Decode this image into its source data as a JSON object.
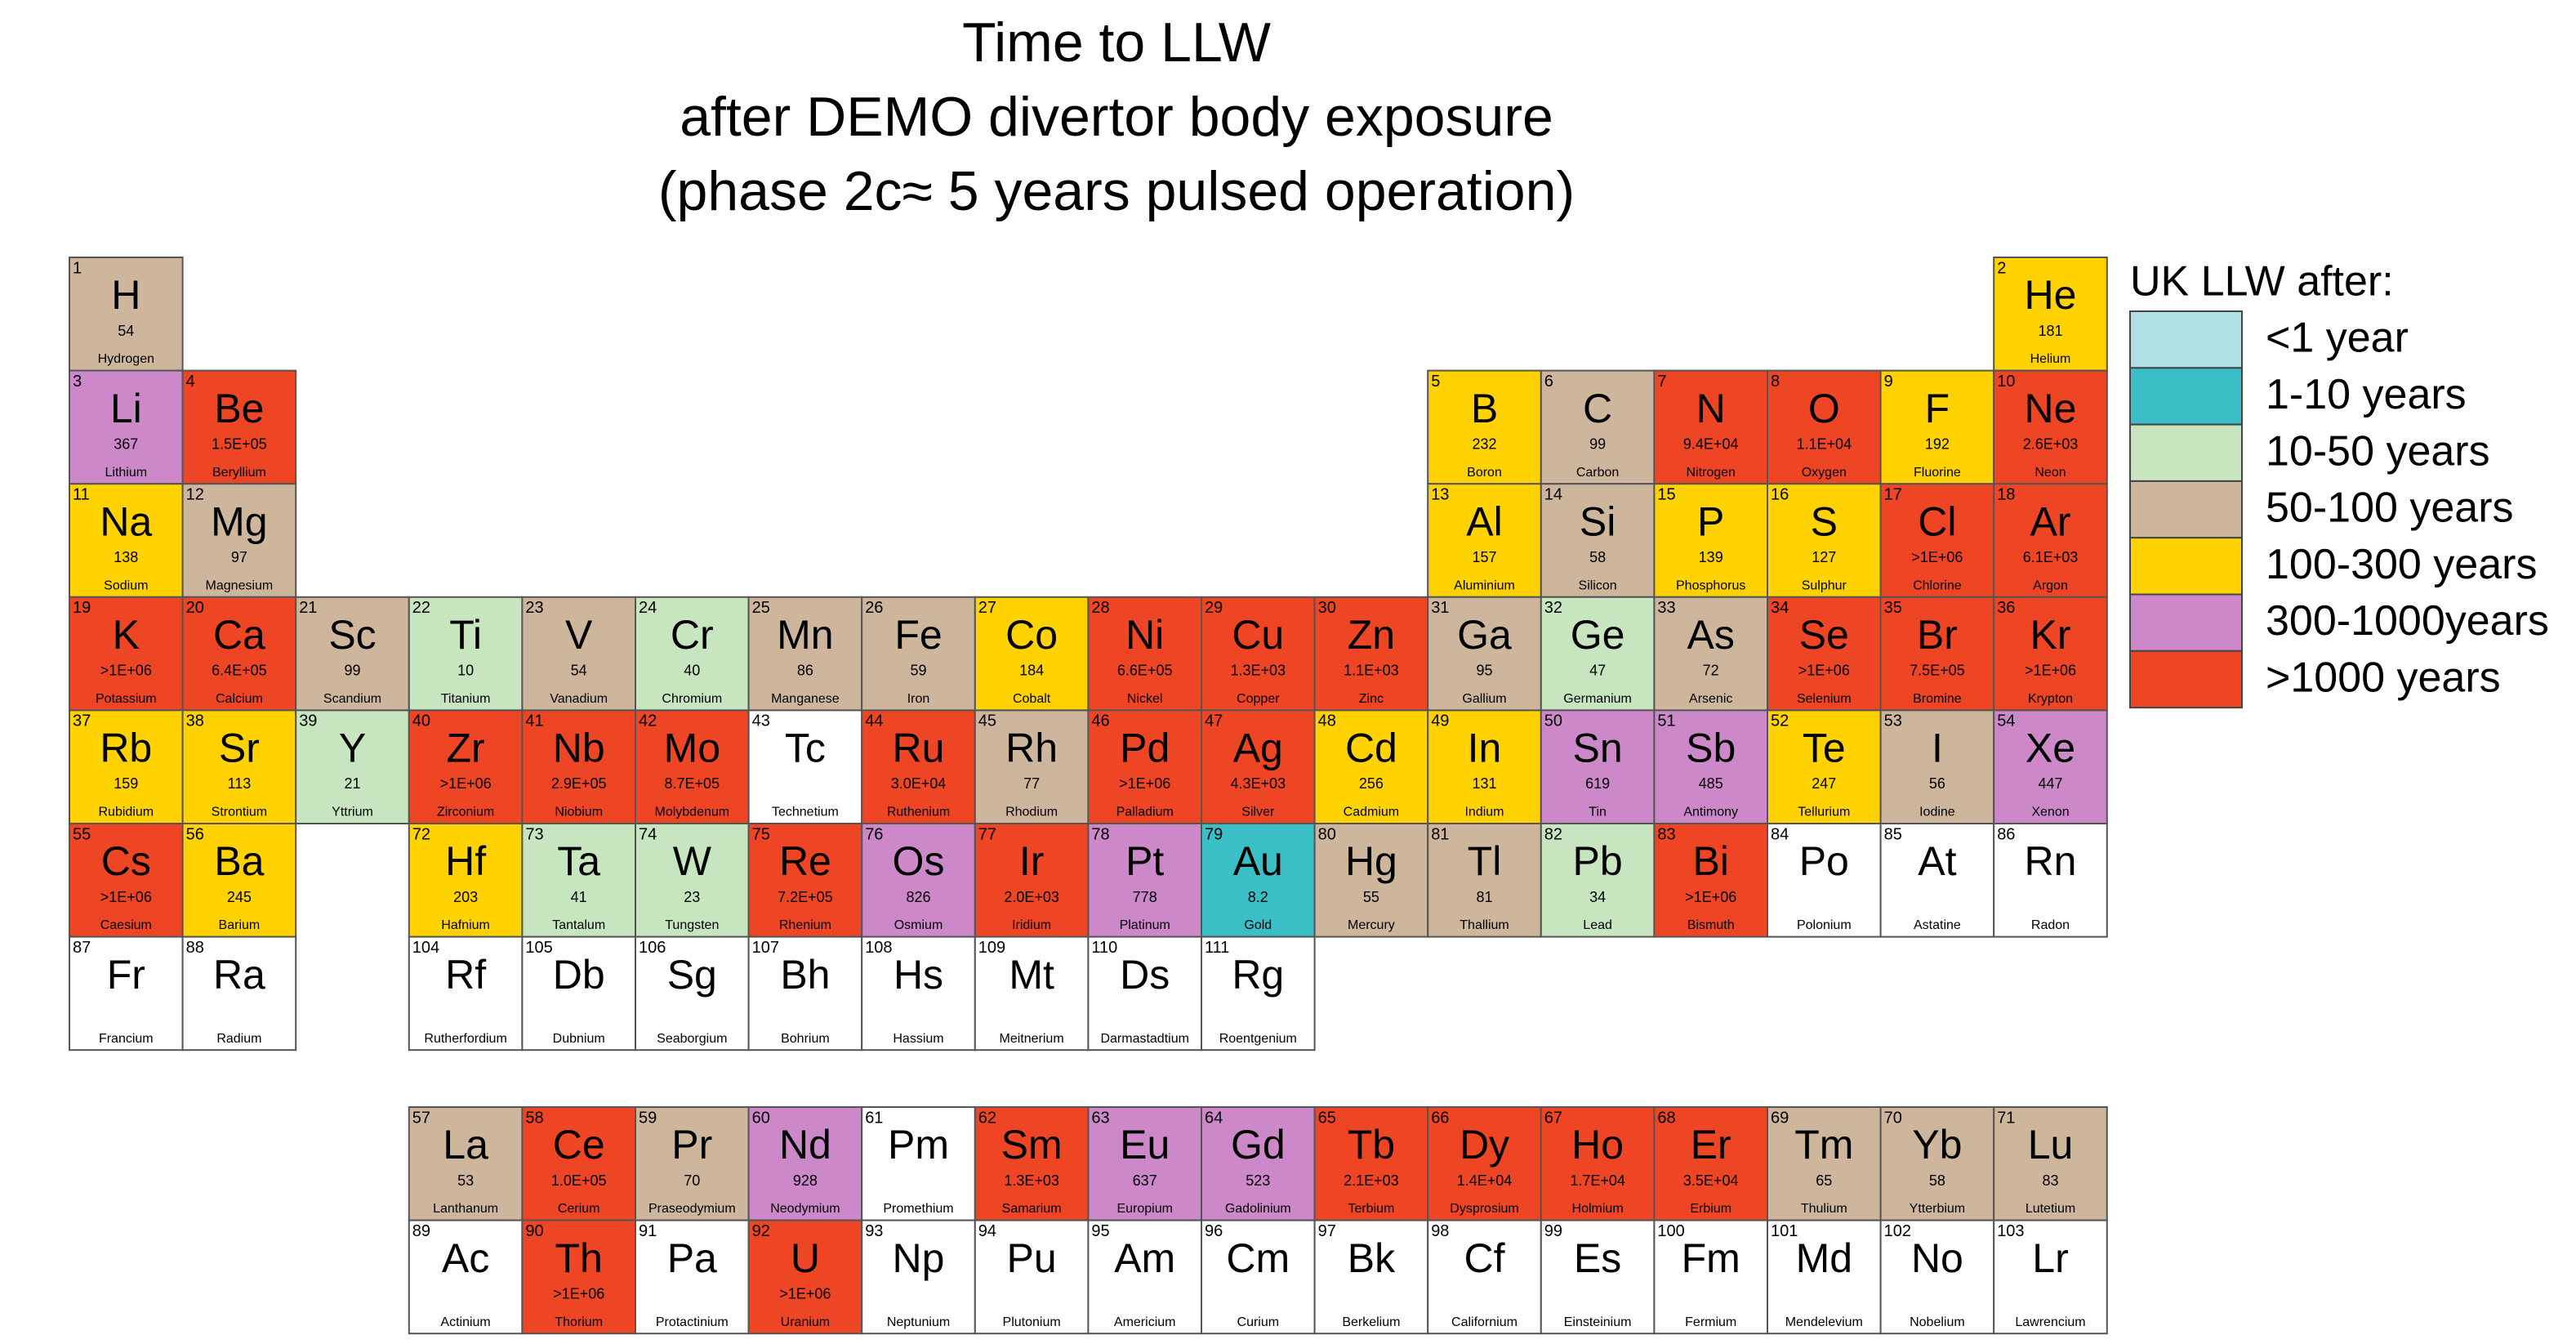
{
  "header": {
    "title": [
      "Time to LLW",
      "after DEMO divertor body exposure",
      "(phase 2c≈ 5 years pulsed operation)"
    ]
  },
  "legend": {
    "title": "UK LLW after:",
    "items": [
      {
        "label": "<1 year",
        "color": "#b0e0e6"
      },
      {
        "label": "1-10 years",
        "color": "#3bbfc6"
      },
      {
        "label": "10-50 years",
        "color": "#c7e5bf"
      },
      {
        "label": "50-100 years",
        "color": "#cdb69c"
      },
      {
        "label": "100-300 years",
        "color": "#ffd200"
      },
      {
        "label": "300-1000years",
        "color": "#cc88c9"
      },
      {
        "label": ">1000 years",
        "color": "#ee4524"
      }
    ]
  },
  "elements": [
    {
      "number": 1,
      "symbol": "H",
      "value": "54",
      "name": "Hydrogen",
      "color": "#cdb69c"
    },
    {
      "number": 2,
      "symbol": "He",
      "value": "181",
      "name": "Helium",
      "color": "#ffd200"
    },
    {
      "number": 3,
      "symbol": "Li",
      "value": "367",
      "name": "Lithium",
      "color": "#cc88c9"
    },
    {
      "number": 4,
      "symbol": "Be",
      "value": "1.5E+05",
      "name": "Beryllium",
      "color": "#ee4524"
    },
    {
      "number": 5,
      "symbol": "B",
      "value": "232",
      "name": "Boron",
      "color": "#ffd200"
    },
    {
      "number": 6,
      "symbol": "C",
      "value": "99",
      "name": "Carbon",
      "color": "#cdb69c"
    },
    {
      "number": 7,
      "symbol": "N",
      "value": "9.4E+04",
      "name": "Nitrogen",
      "color": "#ee4524"
    },
    {
      "number": 8,
      "symbol": "O",
      "value": "1.1E+04",
      "name": "Oxygen",
      "color": "#ee4524"
    },
    {
      "number": 9,
      "symbol": "F",
      "value": "192",
      "name": "Fluorine",
      "color": "#ffd200"
    },
    {
      "number": 10,
      "symbol": "Ne",
      "value": "2.6E+03",
      "name": "Neon",
      "color": "#ee4524"
    },
    {
      "number": 11,
      "symbol": "Na",
      "value": "138",
      "name": "Sodium",
      "color": "#ffd200"
    },
    {
      "number": 12,
      "symbol": "Mg",
      "value": "97",
      "name": "Magnesium",
      "color": "#cdb69c"
    },
    {
      "number": 13,
      "symbol": "Al",
      "value": "157",
      "name": "Aluminium",
      "color": "#ffd200"
    },
    {
      "number": 14,
      "symbol": "Si",
      "value": "58",
      "name": "Silicon",
      "color": "#cdb69c"
    },
    {
      "number": 15,
      "symbol": "P",
      "value": "139",
      "name": "Phosphorus",
      "color": "#ffd200"
    },
    {
      "number": 16,
      "symbol": "S",
      "value": "127",
      "name": "Sulphur",
      "color": "#ffd200"
    },
    {
      "number": 17,
      "symbol": "Cl",
      "value": ">1E+06",
      "name": "Chlorine",
      "color": "#ee4524"
    },
    {
      "number": 18,
      "symbol": "Ar",
      "value": "6.1E+03",
      "name": "Argon",
      "color": "#ee4524"
    },
    {
      "number": 19,
      "symbol": "K",
      "value": ">1E+06",
      "name": "Potassium",
      "color": "#ee4524"
    },
    {
      "number": 20,
      "symbol": "Ca",
      "value": "6.4E+05",
      "name": "Calcium",
      "color": "#ee4524"
    },
    {
      "number": 21,
      "symbol": "Sc",
      "value": "99",
      "name": "Scandium",
      "color": "#cdb69c"
    },
    {
      "number": 22,
      "symbol": "Ti",
      "value": "10",
      "name": "Titanium",
      "color": "#c7e5bf"
    },
    {
      "number": 23,
      "symbol": "V",
      "value": "54",
      "name": "Vanadium",
      "color": "#cdb69c"
    },
    {
      "number": 24,
      "symbol": "Cr",
      "value": "40",
      "name": "Chromium",
      "color": "#c7e5bf"
    },
    {
      "number": 25,
      "symbol": "Mn",
      "value": "86",
      "name": "Manganese",
      "color": "#cdb69c"
    },
    {
      "number": 26,
      "symbol": "Fe",
      "value": "59",
      "name": "Iron",
      "color": "#cdb69c"
    },
    {
      "number": 27,
      "symbol": "Co",
      "value": "184",
      "name": "Cobalt",
      "color": "#ffd200"
    },
    {
      "number": 28,
      "symbol": "Ni",
      "value": "6.6E+05",
      "name": "Nickel",
      "color": "#ee4524"
    },
    {
      "number": 29,
      "symbol": "Cu",
      "value": "1.3E+03",
      "name": "Copper",
      "color": "#ee4524"
    },
    {
      "number": 30,
      "symbol": "Zn",
      "value": "1.1E+03",
      "name": "Zinc",
      "color": "#ee4524"
    },
    {
      "number": 31,
      "symbol": "Ga",
      "value": "95",
      "name": "Gallium",
      "color": "#cdb69c"
    },
    {
      "number": 32,
      "symbol": "Ge",
      "value": "47",
      "name": "Germanium",
      "color": "#c7e5bf"
    },
    {
      "number": 33,
      "symbol": "As",
      "value": "72",
      "name": "Arsenic",
      "color": "#cdb69c"
    },
    {
      "number": 34,
      "symbol": "Se",
      "value": ">1E+06",
      "name": "Selenium",
      "color": "#ee4524"
    },
    {
      "number": 35,
      "symbol": "Br",
      "value": "7.5E+05",
      "name": "Bromine",
      "color": "#ee4524"
    },
    {
      "number": 36,
      "symbol": "Kr",
      "value": ">1E+06",
      "name": "Krypton",
      "color": "#ee4524"
    },
    {
      "number": 37,
      "symbol": "Rb",
      "value": "159",
      "name": "Rubidium",
      "color": "#ffd200"
    },
    {
      "number": 38,
      "symbol": "Sr",
      "value": "113",
      "name": "Strontium",
      "color": "#ffd200"
    },
    {
      "number": 39,
      "symbol": "Y",
      "value": "21",
      "name": "Yttrium",
      "color": "#c7e5bf"
    },
    {
      "number": 40,
      "symbol": "Zr",
      "value": ">1E+06",
      "name": "Zirconium",
      "color": "#ee4524"
    },
    {
      "number": 41,
      "symbol": "Nb",
      "value": "2.9E+05",
      "name": "Niobium",
      "color": "#ee4524"
    },
    {
      "number": 42,
      "symbol": "Mo",
      "value": "8.7E+05",
      "name": "Molybdenum",
      "color": "#ee4524"
    },
    {
      "number": 43,
      "symbol": "Tc",
      "name": "Technetium"
    },
    {
      "number": 44,
      "symbol": "Ru",
      "value": "3.0E+04",
      "name": "Ruthenium",
      "color": "#ee4524"
    },
    {
      "number": 45,
      "symbol": "Rh",
      "value": "77",
      "name": "Rhodium",
      "color": "#cdb69c"
    },
    {
      "number": 46,
      "symbol": "Pd",
      "value": ">1E+06",
      "name": "Palladium",
      "color": "#ee4524"
    },
    {
      "number": 47,
      "symbol": "Ag",
      "value": "4.3E+03",
      "name": "Silver",
      "color": "#ee4524"
    },
    {
      "number": 48,
      "symbol": "Cd",
      "value": "256",
      "name": "Cadmium",
      "color": "#ffd200"
    },
    {
      "number": 49,
      "symbol": "In",
      "value": "131",
      "name": "Indium",
      "color": "#ffd200"
    },
    {
      "number": 50,
      "symbol": "Sn",
      "value": "619",
      "name": "Tin",
      "color": "#cc88c9"
    },
    {
      "number": 51,
      "symbol": "Sb",
      "value": "485",
      "name": "Antimony",
      "color": "#cc88c9"
    },
    {
      "number": 52,
      "symbol": "Te",
      "value": "247",
      "name": "Tellurium",
      "color": "#ffd200"
    },
    {
      "number": 53,
      "symbol": "I",
      "value": "56",
      "name": "Iodine",
      "color": "#cdb69c"
    },
    {
      "number": 54,
      "symbol": "Xe",
      "value": "447",
      "name": "Xenon",
      "color": "#cc88c9"
    },
    {
      "number": 55,
      "symbol": "Cs",
      "value": ">1E+06",
      "name": "Caesium",
      "color": "#ee4524"
    },
    {
      "number": 56,
      "symbol": "Ba",
      "value": "245",
      "name": "Barium",
      "color": "#ffd200"
    },
    {
      "number": 57,
      "symbol": "La",
      "value": "53",
      "name": "Lanthanum",
      "color": "#cdb69c"
    },
    {
      "number": 58,
      "symbol": "Ce",
      "value": "1.0E+05",
      "name": "Cerium",
      "color": "#ee4524"
    },
    {
      "number": 59,
      "symbol": "Pr",
      "value": "70",
      "name": "Praseodymium",
      "color": "#cdb69c"
    },
    {
      "number": 60,
      "symbol": "Nd",
      "value": "928",
      "name": "Neodymium",
      "color": "#cc88c9"
    },
    {
      "number": 61,
      "symbol": "Pm",
      "name": "Promethium"
    },
    {
      "number": 62,
      "symbol": "Sm",
      "value": "1.3E+03",
      "name": "Samarium",
      "color": "#ee4524"
    },
    {
      "number": 63,
      "symbol": "Eu",
      "value": "637",
      "name": "Europium",
      "color": "#cc88c9"
    },
    {
      "number": 64,
      "symbol": "Gd",
      "value": "523",
      "name": "Gadolinium",
      "color": "#cc88c9"
    },
    {
      "number": 65,
      "symbol": "Tb",
      "value": "2.1E+03",
      "name": "Terbium",
      "color": "#ee4524"
    },
    {
      "number": 66,
      "symbol": "Dy",
      "value": "1.4E+04",
      "name": "Dysprosium",
      "color": "#ee4524"
    },
    {
      "number": 67,
      "symbol": "Ho",
      "value": "1.7E+04",
      "name": "Holmium",
      "color": "#ee4524"
    },
    {
      "number": 68,
      "symbol": "Er",
      "value": "3.5E+04",
      "name": "Erbium",
      "color": "#ee4524"
    },
    {
      "number": 69,
      "symbol": "Tm",
      "value": "65",
      "name": "Thulium",
      "color": "#cdb69c"
    },
    {
      "number": 70,
      "symbol": "Yb",
      "value": "58",
      "name": "Ytterbium",
      "color": "#cdb69c"
    },
    {
      "number": 71,
      "symbol": "Lu",
      "value": "83",
      "name": "Lutetium",
      "color": "#cdb69c"
    },
    {
      "number": 72,
      "symbol": "Hf",
      "value": "203",
      "name": "Hafnium",
      "color": "#ffd200"
    },
    {
      "number": 73,
      "symbol": "Ta",
      "value": "41",
      "name": "Tantalum",
      "color": "#c7e5bf"
    },
    {
      "number": 74,
      "symbol": "W",
      "value": "23",
      "name": "Tungsten",
      "color": "#c7e5bf"
    },
    {
      "number": 75,
      "symbol": "Re",
      "value": "7.2E+05",
      "name": "Rhenium",
      "color": "#ee4524"
    },
    {
      "number": 76,
      "symbol": "Os",
      "value": "826",
      "name": "Osmium",
      "color": "#cc88c9"
    },
    {
      "number": 77,
      "symbol": "Ir",
      "value": "2.0E+03",
      "name": "Iridium",
      "color": "#ee4524"
    },
    {
      "number": 78,
      "symbol": "Pt",
      "value": "778",
      "name": "Platinum",
      "color": "#cc88c9"
    },
    {
      "number": 79,
      "symbol": "Au",
      "value": "8.2",
      "name": "Gold",
      "color": "#3bbfc6"
    },
    {
      "number": 80,
      "symbol": "Hg",
      "value": "55",
      "name": "Mercury",
      "color": "#cdb69c"
    },
    {
      "number": 81,
      "symbol": "Tl",
      "value": "81",
      "name": "Thallium",
      "color": "#cdb69c"
    },
    {
      "number": 82,
      "symbol": "Pb",
      "value": "34",
      "name": "Lead",
      "color": "#c7e5bf"
    },
    {
      "number": 83,
      "symbol": "Bi",
      "value": ">1E+06",
      "name": "Bismuth",
      "color": "#ee4524"
    },
    {
      "number": 84,
      "symbol": "Po",
      "name": "Polonium"
    },
    {
      "number": 85,
      "symbol": "At",
      "name": "Astatine"
    },
    {
      "number": 86,
      "symbol": "Rn",
      "name": "Radon"
    },
    {
      "number": 87,
      "symbol": "Fr",
      "name": "Francium"
    },
    {
      "number": 88,
      "symbol": "Ra",
      "name": "Radium"
    },
    {
      "number": 89,
      "symbol": "Ac",
      "name": "Actinium"
    },
    {
      "number": 90,
      "symbol": "Th",
      "value": ">1E+06",
      "name": "Thorium",
      "color": "#ee4524"
    },
    {
      "number": 91,
      "symbol": "Pa",
      "name": "Protactinium"
    },
    {
      "number": 92,
      "symbol": "U",
      "value": ">1E+06",
      "name": "Uranium",
      "color": "#ee4524"
    },
    {
      "number": 93,
      "symbol": "Np",
      "name": "Neptunium"
    },
    {
      "number": 94,
      "symbol": "Pu",
      "name": "Plutonium"
    },
    {
      "number": 95,
      "symbol": "Am",
      "name": "Americium"
    },
    {
      "number": 96,
      "symbol": "Cm",
      "name": "Curium"
    },
    {
      "number": 97,
      "symbol": "Bk",
      "name": "Berkelium"
    },
    {
      "number": 98,
      "symbol": "Cf",
      "name": "Californium"
    },
    {
      "number": 99,
      "symbol": "Es",
      "name": "Einsteinium"
    },
    {
      "number": 100,
      "symbol": "Fm",
      "name": "Fermium"
    },
    {
      "number": 101,
      "symbol": "Md",
      "name": "Mendelevium"
    },
    {
      "number": 102,
      "symbol": "No",
      "name": "Nobelium"
    },
    {
      "number": 103,
      "symbol": "Lr",
      "name": "Lawrencium"
    },
    {
      "number": 104,
      "symbol": "Rf",
      "name": "Rutherfordium"
    },
    {
      "number": 105,
      "symbol": "Db",
      "name": "Dubnium"
    },
    {
      "number": 106,
      "symbol": "Sg",
      "name": "Seaborgium"
    },
    {
      "number": 107,
      "symbol": "Bh",
      "name": "Bohrium"
    },
    {
      "number": 108,
      "symbol": "Hs",
      "name": "Hassium"
    },
    {
      "number": 109,
      "symbol": "Mt",
      "name": "Meitnerium"
    },
    {
      "number": 110,
      "symbol": "Ds",
      "name": "Darmastadtium"
    },
    {
      "number": 111,
      "symbol": "Rg",
      "name": "Roentgenium"
    }
  ]
}
